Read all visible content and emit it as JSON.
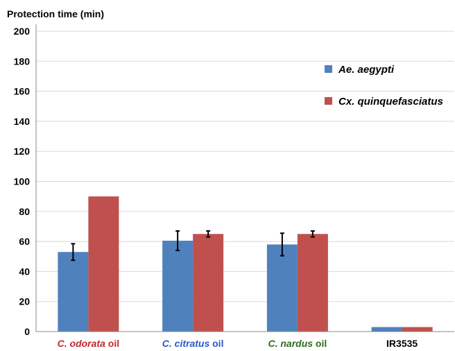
{
  "chart_data": {
    "type": "bar",
    "title": "",
    "ylabel": "Protection time (min)",
    "xlabel": "",
    "ylim": [
      0,
      200
    ],
    "yticks": [
      0,
      20,
      40,
      60,
      80,
      100,
      120,
      140,
      160,
      180,
      200
    ],
    "grid": true,
    "legend_position": "top-right",
    "categories": [
      {
        "parts": [
          {
            "text": "C. odorata",
            "italic": true
          },
          {
            "text": " oil",
            "italic": false
          }
        ],
        "color": "#c0282d"
      },
      {
        "parts": [
          {
            "text": "C. citratus",
            "italic": true
          },
          {
            "text": " oil",
            "italic": false
          }
        ],
        "color": "#2f55c8"
      },
      {
        "parts": [
          {
            "text": "C. nardus",
            "italic": true
          },
          {
            "text": " oil",
            "italic": false
          }
        ],
        "color": "#2e6b1e"
      },
      {
        "parts": [
          {
            "text": "IR3535",
            "italic": false
          }
        ],
        "color": "#000000"
      }
    ],
    "series": [
      {
        "name": "Ae. aegypti",
        "color": "#4f81bd",
        "values": [
          53,
          60.5,
          58,
          3
        ],
        "errors": [
          5.5,
          6.5,
          7.5,
          0
        ]
      },
      {
        "name": "Cx. quinquefasciatus",
        "color": "#c0504d",
        "values": [
          90,
          65,
          65,
          3
        ],
        "errors": [
          0,
          2,
          2,
          0
        ]
      }
    ]
  }
}
